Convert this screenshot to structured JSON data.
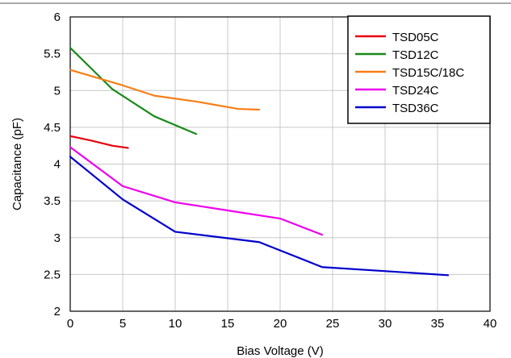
{
  "chart_data": {
    "type": "line",
    "xlabel": "Bias Voltage (V)",
    "ylabel": "Capacitance (pF)",
    "xlim": [
      0,
      40
    ],
    "ylim": [
      2,
      6
    ],
    "xticks": [
      0,
      5,
      10,
      15,
      20,
      25,
      30,
      35,
      40
    ],
    "yticks": [
      2,
      2.5,
      3,
      3.5,
      4,
      4.5,
      5,
      5.5,
      6
    ],
    "grid": true,
    "legend_position": "top-right",
    "series": [
      {
        "name": "TSD05C",
        "color": "#e8000b",
        "x": [
          0,
          2,
          4,
          5.5
        ],
        "y": [
          4.38,
          4.32,
          4.25,
          4.22
        ]
      },
      {
        "name": "TSD12C",
        "color": "#1a8a1a",
        "x": [
          0,
          2,
          4,
          8,
          12
        ],
        "y": [
          5.58,
          5.3,
          5.02,
          4.65,
          4.41
        ]
      },
      {
        "name": "TSD15C/18C",
        "color": "#f97d16",
        "x": [
          0,
          5,
          8,
          12,
          16,
          18
        ],
        "y": [
          5.28,
          5.07,
          4.93,
          4.85,
          4.75,
          4.74
        ]
      },
      {
        "name": "TSD24C",
        "color": "#ee00ee",
        "x": [
          0,
          5,
          10,
          15,
          20,
          24
        ],
        "y": [
          4.23,
          3.7,
          3.48,
          3.37,
          3.26,
          3.04
        ]
      },
      {
        "name": "TSD36C",
        "color": "#0000cc",
        "x": [
          0,
          5,
          10,
          18,
          24,
          36
        ],
        "y": [
          4.1,
          3.52,
          3.08,
          2.94,
          2.6,
          2.49
        ]
      }
    ]
  }
}
